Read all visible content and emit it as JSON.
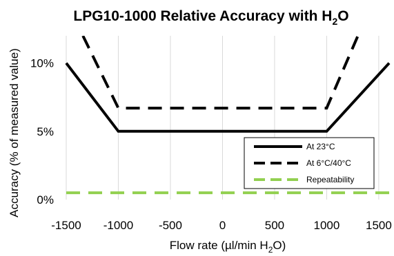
{
  "chart_data": {
    "type": "line",
    "title": {
      "main": "LPG10-1000 Relative Accuracy with H",
      "sub": "2",
      "tail": "O"
    },
    "xlabel": {
      "main": "Flow rate (µl/min H",
      "sub": "2",
      "tail": "O)"
    },
    "ylabel": "Accuracy (% of measured value)",
    "xlim": [
      -1500,
      1600
    ],
    "ylim": [
      0,
      12
    ],
    "x_ticks": [
      -1500,
      -1000,
      -500,
      0,
      500,
      1000,
      1500
    ],
    "x_tick_labels": [
      "-1500",
      "-1000",
      "-500",
      "0",
      "500",
      "1000",
      "1500"
    ],
    "y_ticks": [
      0,
      5,
      10
    ],
    "y_tick_labels": [
      "0%",
      "5%",
      "10%"
    ],
    "grid": "vertical",
    "legend_position": "lower-right",
    "series": [
      {
        "name": "At 23°C",
        "style": "solid",
        "color": "#000000",
        "x": [
          -1500,
          -1000,
          1000,
          1600
        ],
        "y": [
          10,
          5,
          5,
          10
        ]
      },
      {
        "name": "At 6°C/40°C",
        "style": "dashed",
        "color": "#000000",
        "x": [
          -1340,
          -1000,
          1000,
          1300
        ],
        "y": [
          12,
          6.7,
          6.7,
          12
        ]
      },
      {
        "name": "Repeatability",
        "style": "dashed",
        "color": "#92d050",
        "x": [
          -1500,
          1600
        ],
        "y": [
          0.5,
          0.5
        ]
      }
    ]
  }
}
